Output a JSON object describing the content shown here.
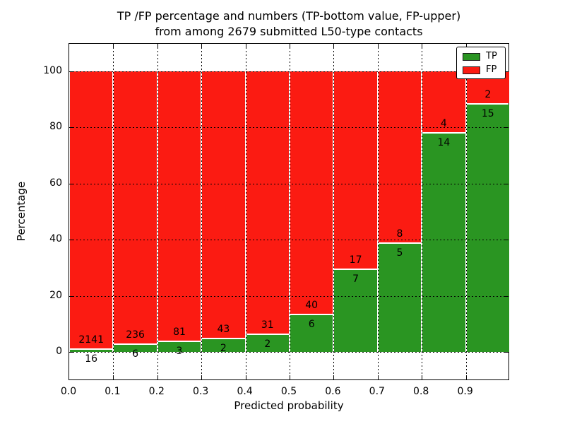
{
  "chart_data": {
    "type": "bar",
    "stacked": true,
    "title_line1": "TP /FP percentage and numbers (TP-bottom value, FP-upper)",
    "title_line2": "from among 2679 submitted L50-type contacts",
    "xlabel": "Predicted probability",
    "ylabel": "Percentage",
    "x_tick_labels": [
      "0.0",
      "0.1",
      "0.2",
      "0.3",
      "0.4",
      "0.5",
      "0.6",
      "0.7",
      "0.8",
      "0.9"
    ],
    "y_tick_values": [
      0,
      20,
      40,
      60,
      80,
      100
    ],
    "y_tick_labels": [
      "0",
      "20",
      "40",
      "60",
      "80",
      "100"
    ],
    "bin_start": [
      0.0,
      0.1,
      0.2,
      0.3,
      0.4,
      0.5,
      0.6,
      0.7,
      0.8,
      0.9
    ],
    "bin_width": 0.1,
    "series": [
      {
        "name": "TP",
        "color": "#2a9522",
        "counts": [
          16,
          6,
          3,
          2,
          2,
          6,
          7,
          5,
          14,
          15
        ]
      },
      {
        "name": "FP",
        "color": "#fb1b12",
        "counts": [
          2141,
          236,
          81,
          43,
          31,
          40,
          17,
          8,
          4,
          2
        ]
      }
    ],
    "tp_percent": [
      0.74,
      2.48,
      3.57,
      4.44,
      6.06,
      13.04,
      29.17,
      38.46,
      77.78,
      88.24
    ],
    "xlim": [
      0.0,
      1.0
    ],
    "ylim": [
      -10.4,
      110.1
    ],
    "grid": true,
    "grid_style": "dotted",
    "legend_position": "upper right"
  }
}
